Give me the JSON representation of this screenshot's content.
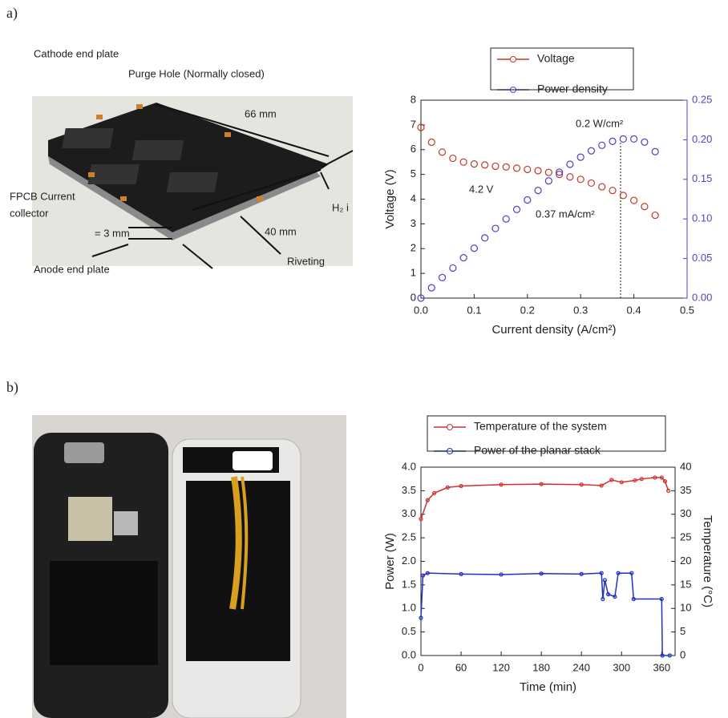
{
  "panels": [
    "a)",
    "b)"
  ],
  "photos": {
    "a": {
      "labels": [
        "Cathode end plate",
        "Purge Hole (Normally closed)",
        "66 mm",
        "FPCB Current",
        "collector",
        "H₂ i",
        "= 3 mm",
        "40 mm",
        "Anode end plate",
        "Riveting"
      ]
    }
  },
  "chart_data": [
    {
      "type": "line",
      "legend": "top",
      "xlabel": "Current density (A/cm²)",
      "ylabel": "Voltage (V)",
      "xlim": [
        0,
        0.5
      ],
      "xticks": [
        {
          "value": 0,
          "label": "0.0"
        },
        0.1,
        0.2,
        0.3,
        0.4,
        0.5
      ],
      "ylim": [
        0,
        8
      ],
      "yticks": [
        0,
        1,
        2,
        3,
        4,
        5,
        6,
        7,
        8
      ],
      "y2lim": [
        0,
        0.25
      ],
      "y2ticks": [
        {
          "value": 0,
          "label": "0.00"
        },
        0.05,
        {
          "value": 0.1,
          "label": "0.10"
        },
        0.15,
        {
          "value": 0.2,
          "label": "0.20"
        },
        0.25
      ],
      "y2_color": "#5a3fc0",
      "annotations": [
        "0.2 W/cm²",
        "4.2 V",
        "0.37 mA/cm²"
      ],
      "reference_x": 0.375,
      "series": [
        {
          "name": "Voltage",
          "color": "#c0392b",
          "x": [
            0,
            0.02,
            0.04,
            0.06,
            0.08,
            0.1,
            0.12,
            0.14,
            0.16,
            0.18,
            0.2,
            0.22,
            0.24,
            0.26,
            0.28,
            0.3,
            0.32,
            0.34,
            0.36,
            0.38,
            0.4,
            0.42,
            0.44
          ],
          "values": [
            6.9,
            6.3,
            5.9,
            5.65,
            5.5,
            5.42,
            5.38,
            5.33,
            5.3,
            5.25,
            5.2,
            5.15,
            5.08,
            5.0,
            4.9,
            4.8,
            4.65,
            4.5,
            4.35,
            4.15,
            3.95,
            3.7,
            3.35
          ]
        },
        {
          "name": "Power density",
          "color": "#4b3fc8",
          "axis": "y2",
          "x": [
            0,
            0.02,
            0.04,
            0.06,
            0.08,
            0.1,
            0.12,
            0.14,
            0.16,
            0.18,
            0.2,
            0.22,
            0.24,
            0.26,
            0.28,
            0.3,
            0.32,
            0.34,
            0.36,
            0.38,
            0.4,
            0.42,
            0.44
          ],
          "values": [
            0,
            0.013,
            0.026,
            0.038,
            0.051,
            0.063,
            0.076,
            0.088,
            0.1,
            0.112,
            0.124,
            0.136,
            0.148,
            0.159,
            0.169,
            0.178,
            0.186,
            0.193,
            0.198,
            0.201,
            0.201,
            0.197,
            0.185
          ]
        }
      ]
    },
    {
      "type": "line",
      "legend": "top",
      "xlabel": "Time (min)",
      "ylabel": "Power (W)",
      "y2label": "Temperature (°C)",
      "xlim": [
        0,
        380
      ],
      "xticks": [
        0,
        60,
        120,
        180,
        240,
        300,
        360
      ],
      "ylim": [
        0,
        4
      ],
      "yticks": [
        {
          "value": 0,
          "label": "0.0"
        },
        0.5,
        {
          "value": 1,
          "label": "1.0"
        },
        1.5,
        {
          "value": 2,
          "label": "2.0"
        },
        2.5,
        {
          "value": 3,
          "label": "3.0"
        },
        3.5,
        {
          "value": 4,
          "label": "4.0"
        }
      ],
      "y2lim": [
        0,
        40
      ],
      "y2ticks": [
        0,
        5,
        10,
        15,
        20,
        25,
        30,
        35,
        40
      ],
      "series": [
        {
          "name": "Temperature of the system",
          "color": "#d03030",
          "axis": "y2",
          "x": [
            0,
            10,
            20,
            40,
            60,
            120,
            180,
            240,
            270,
            285,
            300,
            320,
            330,
            350,
            360,
            365,
            370
          ],
          "values": [
            29,
            33,
            34.5,
            35.7,
            36,
            36.3,
            36.4,
            36.3,
            36.1,
            37.3,
            36.8,
            37.2,
            37.5,
            37.8,
            37.8,
            37,
            35
          ]
        },
        {
          "name": "Power of the planar stack",
          "color": "#2030c0",
          "x": [
            0,
            3,
            10,
            60,
            120,
            180,
            240,
            270,
            272,
            275,
            280,
            290,
            295,
            315,
            318,
            360,
            361,
            372
          ],
          "values": [
            0.8,
            1.7,
            1.75,
            1.73,
            1.72,
            1.74,
            1.73,
            1.75,
            1.2,
            1.6,
            1.3,
            1.25,
            1.75,
            1.75,
            1.2,
            1.2,
            0,
            0
          ]
        }
      ]
    }
  ]
}
